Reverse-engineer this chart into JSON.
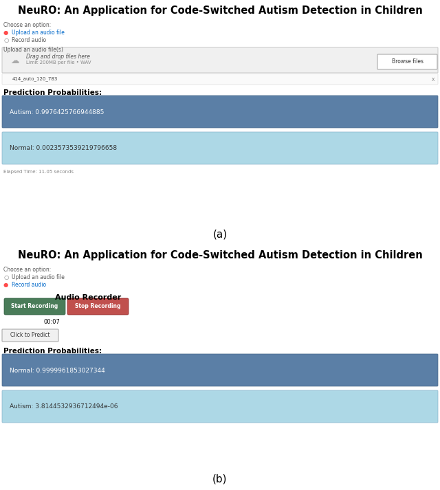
{
  "title": "NeuRO: An Application for Code-Switched Autism Detection in Children",
  "title_fontsize": 10.5,
  "background_color": "#ffffff",
  "panel_a": {
    "label": "(a)",
    "choose_option_label": "Choose an option:",
    "radio1": "Upload an audio file",
    "radio2": "Record audio",
    "upload_label": "Upload an audio file(s)",
    "dropzone_text": "Drag and drop files here",
    "dropzone_subtext": "Limit 200MB per file • WAV",
    "browse_btn": "Browse files",
    "file_name": "414_auto_120_783",
    "pred_label": "Prediction Probabilities:",
    "box1_text": "Autism: 0.9976425766944885",
    "box1_color": "#5b7fa6",
    "box2_text": "Normal: 0.0023573539219796658",
    "box2_color": "#add8e6",
    "elapsed_text": "Elapsed Time: 11.05 seconds"
  },
  "panel_b": {
    "label": "(b)",
    "choose_option_label": "Choose an option:",
    "radio1": "Upload an audio file",
    "radio2": "Record audio",
    "recorder_title": "Audio Recorder",
    "btn1_text": "Start Recording",
    "btn1_color": "#4a7c59",
    "btn2_text": "Stop Recording",
    "btn2_color": "#c0504d",
    "timer_text": "00:07",
    "predict_btn": "Click to Predict",
    "pred_label": "Prediction Probabilities:",
    "box1_text": "Normal: 0.9999961853027344",
    "box1_color": "#5b7fa6",
    "box2_text": "Autism: 3.8144532936712494e-06",
    "box2_color": "#add8e6"
  }
}
